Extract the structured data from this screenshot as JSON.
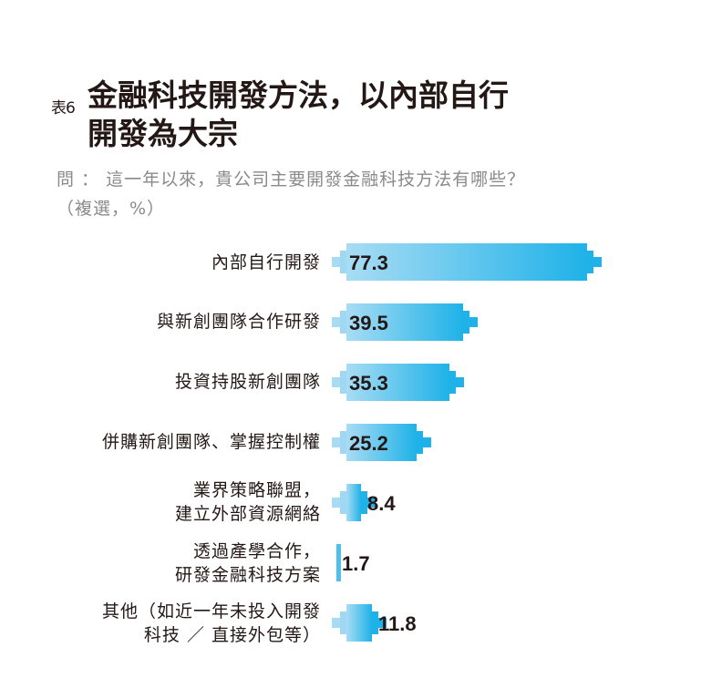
{
  "header": {
    "tag": "表6",
    "title_line1": "金融科技開發方法，以內部自行",
    "title_line2": "開發為大宗",
    "question_line1": "問 ： 這一年以來，貴公司主要開發金融科技方法有哪些？",
    "question_line2": "（複選，%）"
  },
  "colors": {
    "bar_start": "#a8dcf4",
    "bar_end": "#1fb2e8",
    "text": "#231815",
    "subtitle": "#8a8a8a"
  },
  "chart_data": {
    "type": "bar",
    "orientation": "horizontal",
    "title": "金融科技開發方法，以內部自行開發為大宗",
    "subtitle": "問：這一年以來，貴公司主要開發金融科技方法有哪些？（複選，%）",
    "unit": "%",
    "categories": [
      "內部自行開發",
      "與新創團隊合作研發",
      "投資持股新創團隊",
      "併購新創團隊、掌握控制權",
      "業界策略聯盟，建立外部資源網絡",
      "透過產學合作，研發金融科技方案",
      "其他（如近一年未投入開發科技／直接外包等）"
    ],
    "values": [
      77.3,
      39.5,
      35.3,
      25.2,
      8.4,
      1.7,
      11.8
    ],
    "grid": false,
    "legend": "none"
  },
  "rows": [
    {
      "label1": "內部自行開發",
      "label2": "",
      "value": "77.3"
    },
    {
      "label1": "與新創團隊合作研發",
      "label2": "",
      "value": "39.5"
    },
    {
      "label1": "投資持股新創團隊",
      "label2": "",
      "value": "35.3"
    },
    {
      "label1": "併購新創團隊、掌握控制權",
      "label2": "",
      "value": "25.2"
    },
    {
      "label1": "業界策略聯盟，",
      "label2": "建立外部資源網絡",
      "value": "8.4"
    },
    {
      "label1": "透過產學合作，",
      "label2": "研發金融科技方案",
      "value": "1.7"
    },
    {
      "label1": "其他（如近一年未投入開發",
      "label2": "科技 ／ 直接外包等）",
      "value": "11.8"
    }
  ]
}
